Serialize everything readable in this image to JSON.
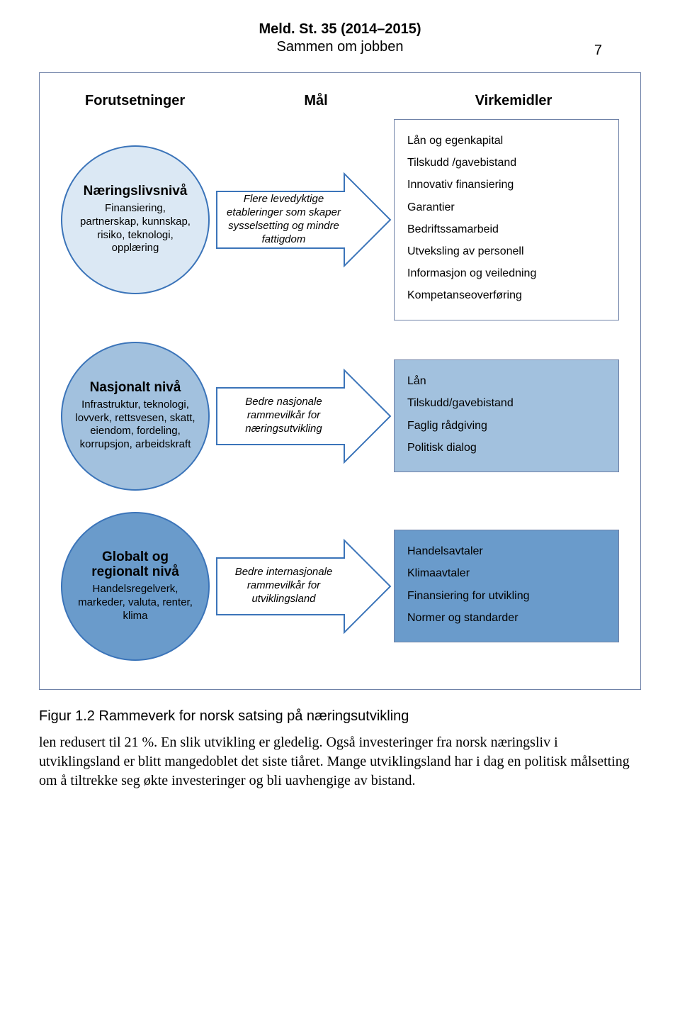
{
  "header": {
    "title": "Meld. St. 35 (2014–2015)",
    "subtitle": "Sammen om jobben",
    "page_number": "7"
  },
  "columns": {
    "c1": "Forutsetninger",
    "c2": "Mål",
    "c3": "Virkemidler"
  },
  "row1": {
    "circle_title": "Næringslivsnivå",
    "circle_body": "Finansiering, partnerskap, kunnskap, risiko, teknologi, opplæring",
    "circle_fill": "#dbe8f4",
    "arrow_text": "Flere levedyktige etableringer som skaper sysselsetting og mindre fattigdom",
    "arrow_stroke": "#3b74b9",
    "arrow_fill": "#ffffff",
    "box_fill": "#ffffff",
    "box_items": [
      "Lån og egenkapital",
      "Tilskudd /gavebistand",
      "Innovativ finansiering",
      "Garantier",
      "Bedriftssamarbeid",
      "Utveksling av personell",
      "Informasjon og veiledning",
      "Kompetanseoverføring"
    ]
  },
  "row2": {
    "circle_title": "Nasjonalt nivå",
    "circle_body": "Infrastruktur, teknologi, lovverk, rettsvesen, skatt, eiendom, fordeling, korrupsjon, arbeidskraft",
    "circle_fill": "#a2c1de",
    "arrow_text": "Bedre nasjonale rammevilkår for næringsutvikling",
    "arrow_stroke": "#3b74b9",
    "arrow_fill": "#ffffff",
    "box_fill": "#a2c1de",
    "box_items": [
      "Lån",
      "Tilskudd/gavebistand",
      "Faglig rådgiving",
      "Politisk dialog"
    ]
  },
  "row3": {
    "circle_title": "Globalt og regionalt nivå",
    "circle_body": "Handelsregelverk, markeder, valuta, renter, klima",
    "circle_fill": "#6a9bcb",
    "arrow_text": "Bedre internasjonale rammevilkår for utviklingsland",
    "arrow_stroke": "#3b74b9",
    "arrow_fill": "#ffffff",
    "box_fill": "#6a9bcb",
    "box_items": [
      "Handelsavtaler",
      "Klimaavtaler",
      "Finansiering for utvikling",
      "Normer og standarder"
    ]
  },
  "caption": "Figur 1.2  Rammeverk for norsk satsing på næringsutvikling",
  "body_text": "len redusert til 21 %. En slik utvikling er gledelig. Også investeringer fra norsk næringsliv i utviklingsland er blitt mangedoblet det siste tiåret. Mange utviklingsland har i dag en politisk målsetting om å tiltrekke seg økte investeringer og bli uavhengige av bistand."
}
